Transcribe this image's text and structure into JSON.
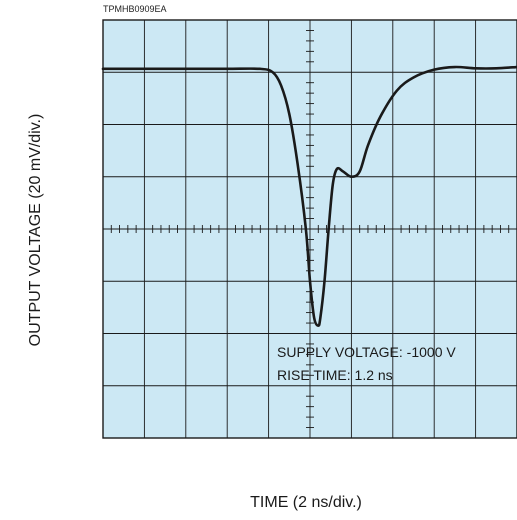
{
  "figure_code": "TPMHB0909EA",
  "chart_data": {
    "type": "line",
    "title": "",
    "xlabel": "TIME (2 ns/div.)",
    "ylabel": "OUTPUT VOLTAGE (20 mV/div.)",
    "grid": true,
    "divisions": {
      "x": 10,
      "y": 8
    },
    "xlim": [
      0,
      20
    ],
    "ylim": [
      -80,
      80
    ],
    "x_unit": "ns",
    "y_unit": "mV",
    "annotations": [
      "SUPPLY  VOLTAGE: -1000 V",
      "RISE TIME: 1.2 ns"
    ],
    "series": [
      {
        "x": [
          0,
          2,
          4,
          6,
          7.6,
          8.2,
          8.6,
          9.0,
          9.4,
          9.8,
          10.0,
          10.2,
          10.4,
          10.5,
          10.7,
          10.9,
          11.1,
          11.3,
          11.6,
          12.0,
          12.4,
          12.8,
          13.4,
          14.2,
          15.0,
          16.0,
          17.0,
          18.0,
          19.0,
          20.0
        ],
        "values": [
          61.3,
          61.3,
          61.3,
          61.3,
          61.3,
          60,
          55,
          44,
          25,
          0,
          -20,
          -34,
          -37,
          -34,
          -20,
          0,
          17,
          23,
          22,
          20,
          22,
          32,
          43,
          53,
          58,
          61,
          62,
          61.5,
          61.5,
          62
        ]
      }
    ],
    "colors": {
      "screen": "#cce8f4",
      "grid": "#1a1a1a",
      "trace": "#1a1a1a"
    }
  }
}
